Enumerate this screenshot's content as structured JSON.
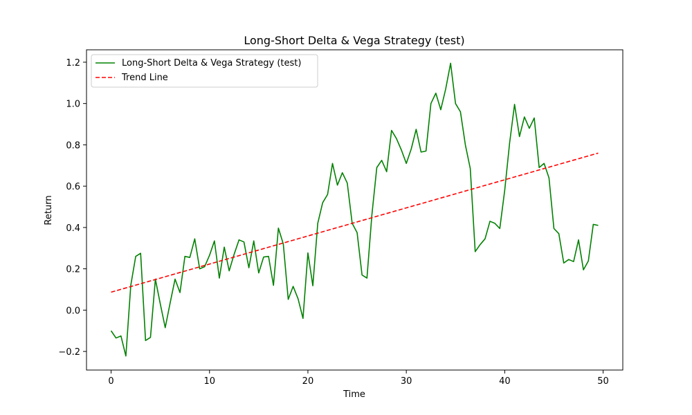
{
  "chart_data": {
    "type": "line",
    "title": "Long-Short Delta & Vega Strategy (test)",
    "xlabel": "Time",
    "ylabel": "Return",
    "xlim": [
      -2.5,
      52.0
    ],
    "ylim": [
      -0.29,
      1.26
    ],
    "xticks": [
      0,
      10,
      20,
      30,
      40,
      50
    ],
    "yticks": [
      -0.2,
      0.0,
      0.2,
      0.4,
      0.6,
      0.8,
      1.0,
      1.2
    ],
    "xtick_labels": [
      "0",
      "10",
      "20",
      "30",
      "40",
      "50"
    ],
    "ytick_labels": [
      "−0.2",
      "0.0",
      "0.2",
      "0.4",
      "0.6",
      "0.8",
      "1.0",
      "1.2"
    ],
    "grid": false,
    "legend_position": "top-left",
    "series": [
      {
        "name": "Long-Short Delta & Vega Strategy (test)",
        "color": "#008000",
        "style": "solid",
        "x": [
          0.0,
          0.5,
          1.0,
          1.5,
          2.0,
          2.5,
          3.0,
          3.5,
          4.0,
          4.5,
          5.0,
          5.5,
          6.0,
          6.5,
          7.0,
          7.5,
          8.0,
          8.5,
          9.0,
          9.5,
          10.0,
          10.5,
          11.0,
          11.5,
          12.0,
          12.5,
          13.0,
          13.5,
          14.0,
          14.5,
          15.0,
          15.5,
          16.0,
          16.5,
          17.0,
          17.5,
          18.0,
          18.5,
          19.0,
          19.5,
          20.0,
          20.5,
          21.0,
          21.5,
          22.0,
          22.5,
          23.0,
          23.5,
          24.0,
          24.5,
          25.0,
          25.5,
          26.0,
          26.5,
          27.0,
          27.5,
          28.0,
          28.5,
          29.0,
          29.5,
          30.0,
          30.5,
          31.0,
          31.5,
          32.0,
          32.5,
          33.0,
          33.5,
          34.0,
          34.5,
          35.0,
          35.5,
          36.0,
          36.5,
          37.0,
          37.5,
          38.0,
          38.5,
          39.0,
          39.5,
          40.0,
          40.5,
          41.0,
          41.5,
          42.0,
          42.5,
          43.0,
          43.5,
          44.0,
          44.5,
          45.0,
          45.5,
          46.0,
          46.5,
          47.0,
          47.5,
          48.0,
          48.5,
          49.0,
          49.5
        ],
        "y": [
          -0.1,
          -0.135,
          -0.125,
          -0.222,
          0.12,
          0.26,
          0.275,
          -0.147,
          -0.132,
          0.15,
          0.03,
          -0.085,
          0.035,
          0.15,
          0.085,
          0.26,
          0.255,
          0.345,
          0.2,
          0.21,
          0.265,
          0.335,
          0.155,
          0.305,
          0.19,
          0.27,
          0.34,
          0.33,
          0.205,
          0.335,
          0.18,
          0.257,
          0.26,
          0.12,
          0.397,
          0.32,
          0.052,
          0.115,
          0.055,
          -0.04,
          0.277,
          0.118,
          0.42,
          0.52,
          0.56,
          0.71,
          0.605,
          0.665,
          0.615,
          0.42,
          0.375,
          0.17,
          0.155,
          0.46,
          0.69,
          0.725,
          0.67,
          0.87,
          0.83,
          0.775,
          0.71,
          0.78,
          0.875,
          0.765,
          0.77,
          1.0,
          1.05,
          0.97,
          1.07,
          1.195,
          1.0,
          0.96,
          0.8,
          0.685,
          0.283,
          0.317,
          0.345,
          0.43,
          0.42,
          0.395,
          0.58,
          0.81,
          0.996,
          0.84,
          0.935,
          0.88,
          0.93,
          0.69,
          0.71,
          0.64,
          0.395,
          0.37,
          0.228,
          0.245,
          0.235,
          0.34,
          0.195,
          0.238,
          0.415,
          0.41
        ]
      },
      {
        "name": "Trend Line",
        "color": "#ff0000",
        "style": "dashed",
        "x": [
          0.0,
          49.5
        ],
        "y": [
          0.087,
          0.76
        ]
      }
    ]
  }
}
